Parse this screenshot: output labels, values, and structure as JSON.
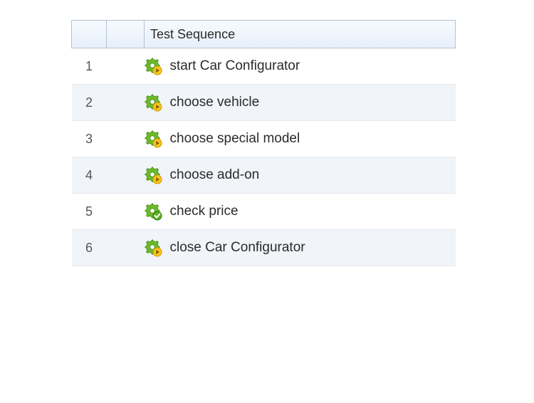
{
  "table": {
    "header_label": "Test Sequence",
    "header_bg_top": "#f6fafe",
    "header_bg_bottom": "#e7effa",
    "header_border": "#b6c1cf",
    "row_alt_bg": "#f1f4f8",
    "row_border": "#e4e8ee",
    "text_color": "#2b2b2b",
    "num_color": "#555555",
    "font_size_label": 19,
    "font_size_header": 18,
    "col_widths": {
      "num": 32,
      "spacer": 36
    }
  },
  "icons": {
    "gear_color": "#6eb92b",
    "gear_stroke": "#3e8e12",
    "badge_play_fill": "#f6c61e",
    "badge_play_stroke": "#cf9a00",
    "badge_play_glyph": "#8a5a00",
    "badge_check_fill": "#5fae29",
    "badge_check_stroke": "#2e7a0c",
    "badge_check_glyph": "#ffffff"
  },
  "steps": [
    {
      "num": "1",
      "label": "start Car Configurator",
      "icon": "gear-play"
    },
    {
      "num": "2",
      "label": "choose vehicle",
      "icon": "gear-play"
    },
    {
      "num": "3",
      "label": "choose special model",
      "icon": "gear-play"
    },
    {
      "num": "4",
      "label": "choose add-on",
      "icon": "gear-play"
    },
    {
      "num": "5",
      "label": "check price",
      "icon": "gear-check"
    },
    {
      "num": "6",
      "label": "close Car Configurator",
      "icon": "gear-play"
    }
  ]
}
